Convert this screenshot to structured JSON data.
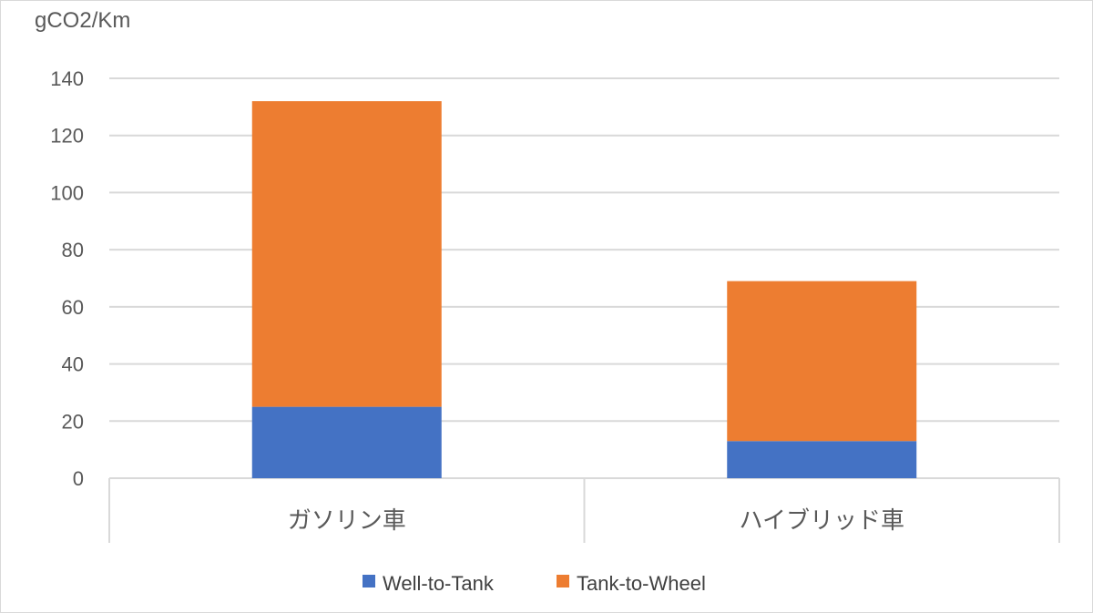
{
  "chart_data": {
    "type": "bar",
    "stacked": true,
    "ylabel": "gCO2/Km",
    "xlabel": "",
    "ylim": [
      0,
      140
    ],
    "y_ticks": [
      0,
      20,
      40,
      60,
      80,
      100,
      120,
      140
    ],
    "grid": true,
    "legend_position": "bottom",
    "categories": [
      "ガソリン車",
      "ハイブリッド車"
    ],
    "series": [
      {
        "name": "Well-to-Tank",
        "color": "#4472C4",
        "values": [
          25,
          13
        ]
      },
      {
        "name": "Tank-to-Wheel",
        "color": "#ED7D31",
        "values": [
          107,
          56
        ]
      }
    ]
  }
}
